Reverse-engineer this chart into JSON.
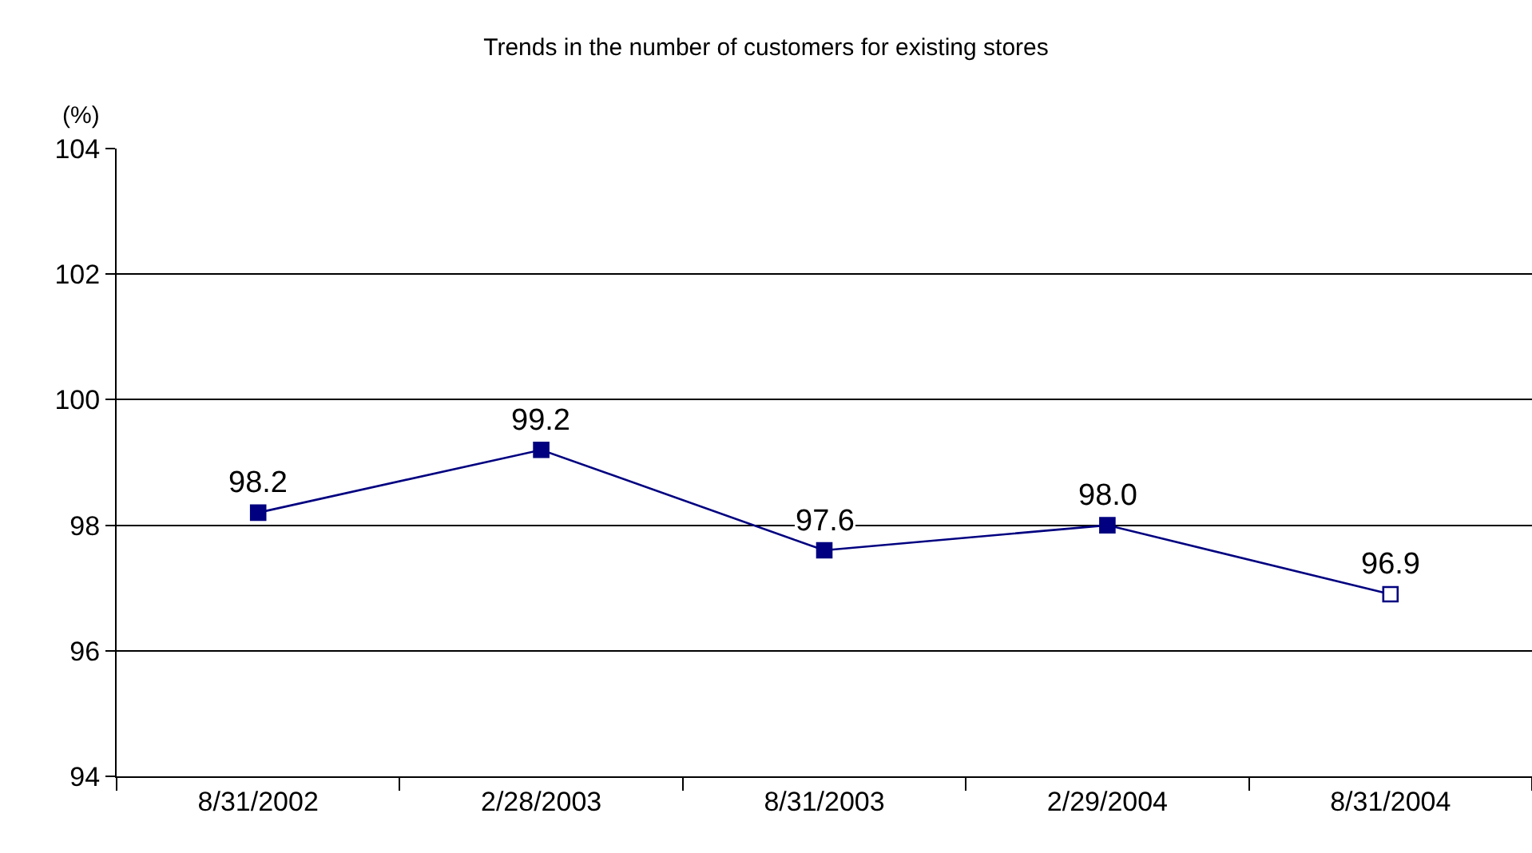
{
  "chart_data": {
    "type": "line",
    "title": "Trends in the number of customers for existing stores",
    "ylabel": "(%)",
    "categories": [
      "8/31/2002",
      "2/28/2003",
      "8/31/2003",
      "2/29/2004",
      "8/31/2004"
    ],
    "series": [
      {
        "color": "#000080",
        "values": [
          98.2,
          99.2,
          97.6,
          98.0,
          96.9
        ],
        "colors": [
          "#000080",
          "#000080",
          "#000080",
          "#000080",
          "#ffffff"
        ],
        "value_labels": [
          "98.2",
          "99.2",
          "97.6",
          "98.0",
          "96.9"
        ]
      }
    ],
    "ylim": [
      94,
      104
    ],
    "yticks": [
      94,
      96,
      98,
      100,
      102,
      104
    ],
    "grid": "y",
    "marker": "square",
    "line_style": "solid"
  }
}
